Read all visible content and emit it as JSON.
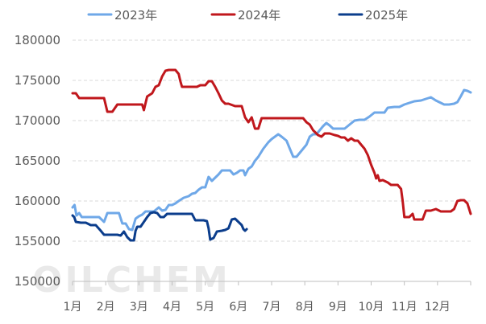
{
  "watermark": "OILCHEM",
  "chart_data": {
    "type": "line",
    "title": "",
    "xlabel": "",
    "ylabel": "",
    "x_unit": "month (1 = Jan 1, 13 = end of year)",
    "ylim": [
      150000,
      180000
    ],
    "yticks": [
      150000,
      155000,
      160000,
      165000,
      170000,
      175000,
      180000
    ],
    "ytick_labels": [
      "150000",
      "155000",
      "160000",
      "165000",
      "170000",
      "175000",
      "180000"
    ],
    "categories": [
      "1月",
      "2月",
      "3月",
      "4月",
      "5月",
      "6月",
      "7月",
      "8月",
      "9月",
      "10月",
      "11月",
      "12月"
    ],
    "grid": "horizontal dashed",
    "legend_position": "top",
    "series": [
      {
        "name": "2023年",
        "color": "#6fa8e8",
        "points": [
          [
            1.0,
            159200
          ],
          [
            1.06,
            159500
          ],
          [
            1.12,
            158200
          ],
          [
            1.2,
            158500
          ],
          [
            1.28,
            158000
          ],
          [
            1.4,
            158000
          ],
          [
            1.6,
            158000
          ],
          [
            1.8,
            158000
          ],
          [
            1.95,
            157400
          ],
          [
            2.05,
            158500
          ],
          [
            2.2,
            158500
          ],
          [
            2.4,
            158500
          ],
          [
            2.5,
            157200
          ],
          [
            2.6,
            157200
          ],
          [
            2.7,
            156500
          ],
          [
            2.8,
            156400
          ],
          [
            2.9,
            157800
          ],
          [
            3.0,
            158100
          ],
          [
            3.1,
            158300
          ],
          [
            3.2,
            158700
          ],
          [
            3.3,
            158700
          ],
          [
            3.45,
            158700
          ],
          [
            3.6,
            159200
          ],
          [
            3.7,
            158800
          ],
          [
            3.8,
            158900
          ],
          [
            3.9,
            159500
          ],
          [
            4.0,
            159500
          ],
          [
            4.1,
            159700
          ],
          [
            4.2,
            160000
          ],
          [
            4.35,
            160400
          ],
          [
            4.5,
            160600
          ],
          [
            4.6,
            160900
          ],
          [
            4.7,
            161000
          ],
          [
            4.8,
            161400
          ],
          [
            4.9,
            161700
          ],
          [
            5.0,
            161700
          ],
          [
            5.1,
            163000
          ],
          [
            5.2,
            162500
          ],
          [
            5.3,
            162900
          ],
          [
            5.4,
            163300
          ],
          [
            5.5,
            163800
          ],
          [
            5.6,
            163800
          ],
          [
            5.75,
            163800
          ],
          [
            5.85,
            163300
          ],
          [
            5.95,
            163500
          ],
          [
            6.05,
            163800
          ],
          [
            6.15,
            163800
          ],
          [
            6.2,
            163200
          ],
          [
            6.3,
            164000
          ],
          [
            6.4,
            164300
          ],
          [
            6.5,
            165000
          ],
          [
            6.6,
            165500
          ],
          [
            6.75,
            166500
          ],
          [
            6.9,
            167300
          ],
          [
            7.0,
            167700
          ],
          [
            7.1,
            168000
          ],
          [
            7.2,
            168300
          ],
          [
            7.3,
            168000
          ],
          [
            7.45,
            167500
          ],
          [
            7.55,
            166500
          ],
          [
            7.65,
            165500
          ],
          [
            7.75,
            165500
          ],
          [
            7.85,
            166000
          ],
          [
            7.95,
            166500
          ],
          [
            8.05,
            167000
          ],
          [
            8.15,
            168000
          ],
          [
            8.25,
            168300
          ],
          [
            8.35,
            168300
          ],
          [
            8.45,
            168800
          ],
          [
            8.55,
            169300
          ],
          [
            8.65,
            169700
          ],
          [
            8.75,
            169400
          ],
          [
            8.85,
            169000
          ],
          [
            8.95,
            169000
          ],
          [
            9.05,
            169000
          ],
          [
            9.2,
            169000
          ],
          [
            9.35,
            169500
          ],
          [
            9.5,
            170000
          ],
          [
            9.65,
            170100
          ],
          [
            9.8,
            170100
          ],
          [
            9.95,
            170500
          ],
          [
            10.1,
            171000
          ],
          [
            10.25,
            171000
          ],
          [
            10.4,
            171000
          ],
          [
            10.5,
            171600
          ],
          [
            10.7,
            171700
          ],
          [
            10.85,
            171700
          ],
          [
            11.0,
            172000
          ],
          [
            11.15,
            172200
          ],
          [
            11.3,
            172400
          ],
          [
            11.5,
            172500
          ],
          [
            11.65,
            172700
          ],
          [
            11.8,
            172900
          ],
          [
            11.95,
            172500
          ],
          [
            12.05,
            172300
          ],
          [
            12.2,
            172000
          ],
          [
            12.35,
            172000
          ],
          [
            12.5,
            172100
          ],
          [
            12.6,
            172300
          ],
          [
            12.7,
            173000
          ],
          [
            12.8,
            173800
          ],
          [
            12.9,
            173700
          ],
          [
            13.0,
            173500
          ]
        ]
      },
      {
        "name": "2024年",
        "color": "#c0171c",
        "points": [
          [
            1.0,
            173400
          ],
          [
            1.1,
            173400
          ],
          [
            1.2,
            172800
          ],
          [
            1.4,
            172800
          ],
          [
            1.6,
            172800
          ],
          [
            1.8,
            172800
          ],
          [
            1.95,
            172800
          ],
          [
            2.05,
            171100
          ],
          [
            2.2,
            171100
          ],
          [
            2.35,
            172000
          ],
          [
            2.5,
            172000
          ],
          [
            2.65,
            172000
          ],
          [
            2.8,
            172000
          ],
          [
            2.95,
            172000
          ],
          [
            3.1,
            172000
          ],
          [
            3.15,
            171300
          ],
          [
            3.25,
            173000
          ],
          [
            3.4,
            173400
          ],
          [
            3.5,
            174200
          ],
          [
            3.6,
            174400
          ],
          [
            3.7,
            175500
          ],
          [
            3.8,
            176200
          ],
          [
            3.9,
            176300
          ],
          [
            4.0,
            176300
          ],
          [
            4.1,
            176300
          ],
          [
            4.2,
            175800
          ],
          [
            4.25,
            174900
          ],
          [
            4.3,
            174200
          ],
          [
            4.45,
            174200
          ],
          [
            4.6,
            174200
          ],
          [
            4.75,
            174200
          ],
          [
            4.85,
            174400
          ],
          [
            5.0,
            174400
          ],
          [
            5.1,
            174900
          ],
          [
            5.2,
            174900
          ],
          [
            5.3,
            174200
          ],
          [
            5.4,
            173400
          ],
          [
            5.5,
            172500
          ],
          [
            5.6,
            172100
          ],
          [
            5.7,
            172100
          ],
          [
            5.9,
            171800
          ],
          [
            6.0,
            171800
          ],
          [
            6.1,
            171800
          ],
          [
            6.2,
            170400
          ],
          [
            6.3,
            169800
          ],
          [
            6.4,
            170400
          ],
          [
            6.5,
            169000
          ],
          [
            6.6,
            169000
          ],
          [
            6.7,
            170300
          ],
          [
            6.85,
            170300
          ],
          [
            7.0,
            170300
          ],
          [
            7.2,
            170300
          ],
          [
            7.4,
            170300
          ],
          [
            7.6,
            170300
          ],
          [
            7.8,
            170300
          ],
          [
            7.95,
            170300
          ],
          [
            8.05,
            169800
          ],
          [
            8.15,
            169500
          ],
          [
            8.25,
            168800
          ],
          [
            8.4,
            168200
          ],
          [
            8.5,
            168000
          ],
          [
            8.6,
            168400
          ],
          [
            8.75,
            168400
          ],
          [
            8.9,
            168200
          ],
          [
            9.0,
            168100
          ],
          [
            9.1,
            167900
          ],
          [
            9.2,
            167900
          ],
          [
            9.3,
            167500
          ],
          [
            9.4,
            167800
          ],
          [
            9.5,
            167500
          ],
          [
            9.6,
            167500
          ],
          [
            9.7,
            167000
          ],
          [
            9.8,
            166500
          ],
          [
            9.9,
            165700
          ],
          [
            10.0,
            164500
          ],
          [
            10.1,
            163500
          ],
          [
            10.15,
            162800
          ],
          [
            10.2,
            163200
          ],
          [
            10.25,
            162500
          ],
          [
            10.35,
            162600
          ],
          [
            10.5,
            162300
          ],
          [
            10.6,
            162000
          ],
          [
            10.7,
            162000
          ],
          [
            10.8,
            162000
          ],
          [
            10.9,
            161500
          ],
          [
            10.95,
            160000
          ],
          [
            11.0,
            158000
          ],
          [
            11.15,
            158000
          ],
          [
            11.25,
            158400
          ],
          [
            11.3,
            157700
          ],
          [
            11.4,
            157700
          ],
          [
            11.55,
            157700
          ],
          [
            11.65,
            158800
          ],
          [
            11.8,
            158800
          ],
          [
            11.95,
            159000
          ],
          [
            12.1,
            158700
          ],
          [
            12.25,
            158700
          ],
          [
            12.4,
            158700
          ],
          [
            12.5,
            159000
          ],
          [
            12.6,
            160000
          ],
          [
            12.7,
            160100
          ],
          [
            12.8,
            160100
          ],
          [
            12.9,
            159700
          ],
          [
            13.0,
            158400
          ]
        ]
      },
      {
        "name": "2025年",
        "color": "#0b3d8c",
        "points": [
          [
            1.0,
            158200
          ],
          [
            1.05,
            158000
          ],
          [
            1.1,
            157400
          ],
          [
            1.25,
            157300
          ],
          [
            1.4,
            157300
          ],
          [
            1.55,
            157000
          ],
          [
            1.7,
            157000
          ],
          [
            1.85,
            156300
          ],
          [
            1.95,
            155800
          ],
          [
            2.1,
            155800
          ],
          [
            2.25,
            155800
          ],
          [
            2.35,
            155800
          ],
          [
            2.45,
            155700
          ],
          [
            2.55,
            156200
          ],
          [
            2.65,
            155500
          ],
          [
            2.75,
            155100
          ],
          [
            2.85,
            155100
          ],
          [
            2.9,
            156300
          ],
          [
            2.95,
            156800
          ],
          [
            3.05,
            156800
          ],
          [
            3.15,
            157400
          ],
          [
            3.25,
            158000
          ],
          [
            3.35,
            158500
          ],
          [
            3.45,
            158600
          ],
          [
            3.55,
            158500
          ],
          [
            3.65,
            158000
          ],
          [
            3.75,
            158000
          ],
          [
            3.85,
            158400
          ],
          [
            4.0,
            158400
          ],
          [
            4.2,
            158400
          ],
          [
            4.4,
            158400
          ],
          [
            4.6,
            158400
          ],
          [
            4.7,
            157600
          ],
          [
            4.85,
            157600
          ],
          [
            4.95,
            157600
          ],
          [
            5.05,
            157500
          ],
          [
            5.1,
            156600
          ],
          [
            5.15,
            155200
          ],
          [
            5.25,
            155400
          ],
          [
            5.35,
            156200
          ],
          [
            5.5,
            156300
          ],
          [
            5.6,
            156400
          ],
          [
            5.7,
            156600
          ],
          [
            5.8,
            157700
          ],
          [
            5.9,
            157800
          ],
          [
            6.0,
            157400
          ],
          [
            6.1,
            157000
          ],
          [
            6.15,
            156500
          ],
          [
            6.2,
            156300
          ],
          [
            6.25,
            156500
          ]
        ]
      }
    ]
  }
}
